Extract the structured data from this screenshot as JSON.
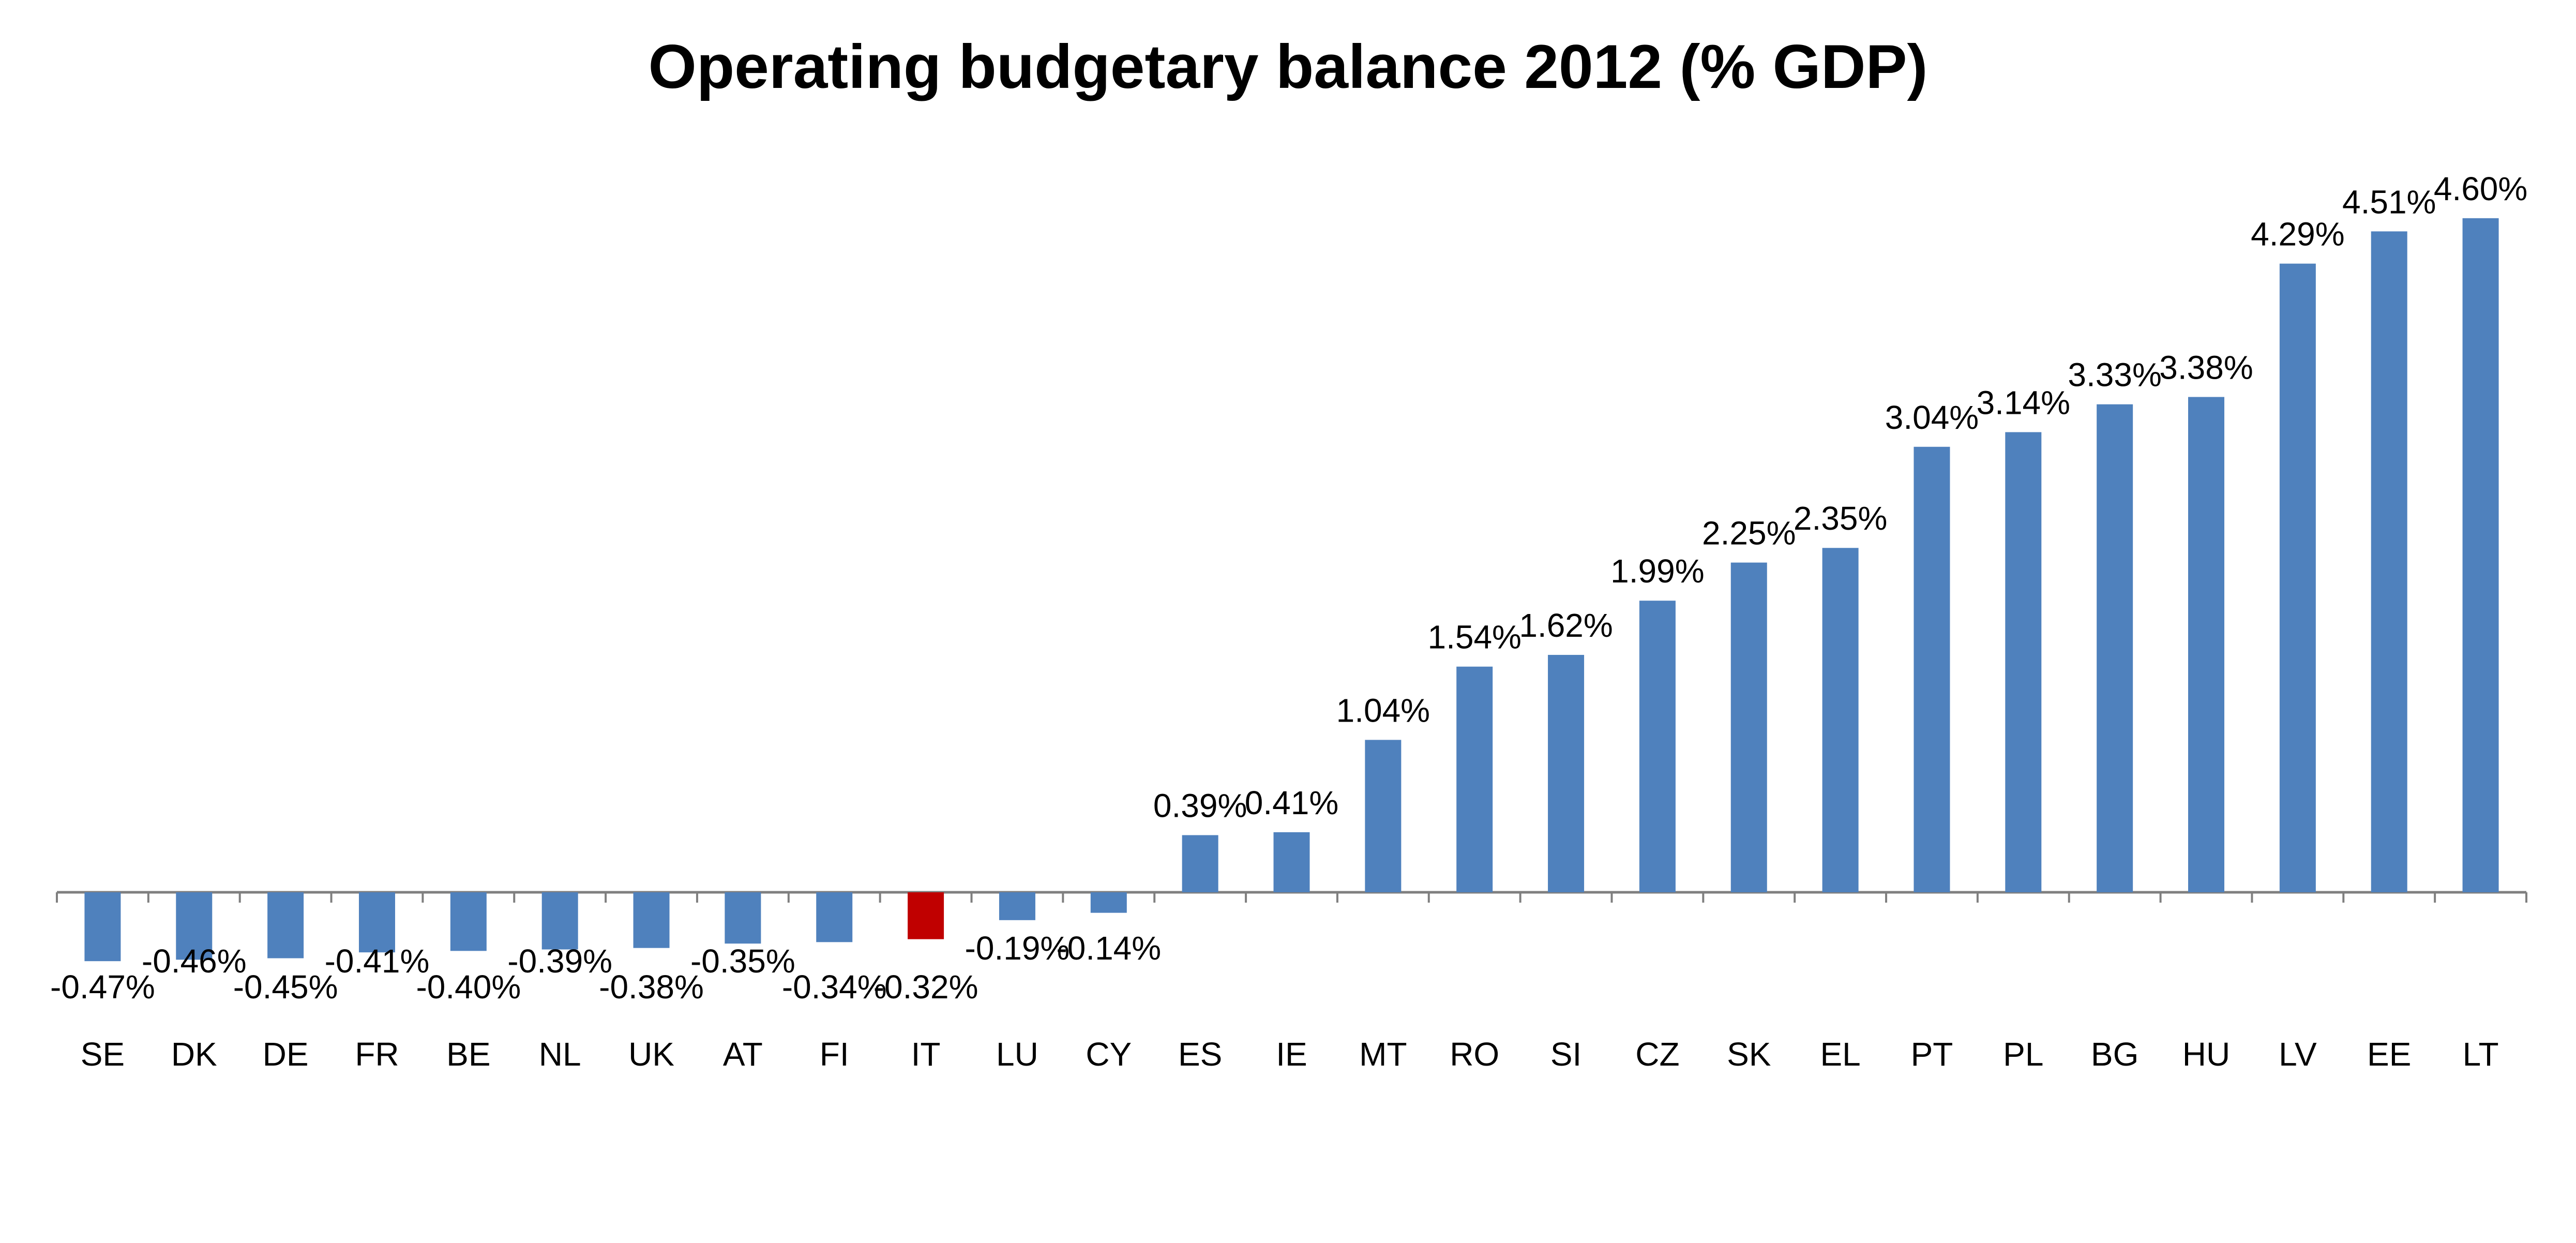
{
  "chart_data": {
    "type": "bar",
    "title": "Operating budgetary balance 2012 (% GDP)",
    "xlabel": "",
    "ylabel": "",
    "grid": false,
    "legend": "none",
    "categories": [
      "SE",
      "DK",
      "DE",
      "FR",
      "BE",
      "NL",
      "UK",
      "AT",
      "FI",
      "IT",
      "LU",
      "CY",
      "ES",
      "IE",
      "MT",
      "RO",
      "SI",
      "CZ",
      "SK",
      "EL",
      "PT",
      "PL",
      "BG",
      "HU",
      "LV",
      "EE",
      "LT"
    ],
    "values": [
      -0.47,
      -0.46,
      -0.45,
      -0.41,
      -0.4,
      -0.39,
      -0.38,
      -0.35,
      -0.34,
      -0.32,
      -0.19,
      -0.14,
      0.39,
      0.41,
      1.04,
      1.54,
      1.62,
      1.99,
      2.25,
      2.35,
      3.04,
      3.14,
      3.33,
      3.38,
      4.29,
      4.51,
      4.6
    ],
    "value_labels": [
      "-0.47%",
      "-0.46%",
      "-0.45%",
      "-0.41%",
      "-0.40%",
      "-0.39%",
      "-0.38%",
      "-0.35%",
      "-0.34%",
      "-0.32%",
      "-0.19%",
      "-0.14%",
      "0.39%",
      "0.41%",
      "1.04%",
      "1.54%",
      "1.62%",
      "1.99%",
      "2.25%",
      "2.35%",
      "3.04%",
      "3.14%",
      "3.33%",
      "3.38%",
      "4.29%",
      "4.51%",
      "4.60%"
    ],
    "ylim": [
      -1.0,
      5.0
    ],
    "colors": {
      "default": "#4F81BD",
      "highlight": "#C00000",
      "axis": "#7F7F7F"
    },
    "highlight_category": "IT"
  }
}
